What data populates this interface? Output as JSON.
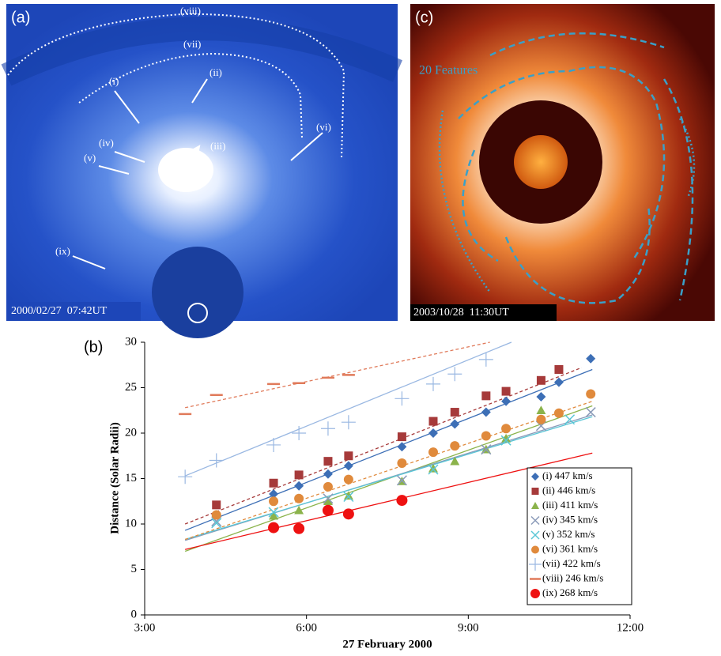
{
  "panels": {
    "a": {
      "label": "(a)",
      "timestamp": "2000/02/27  07:42UT",
      "annotations": [
        "(viii)",
        "(vii)",
        "(i)",
        "(ii)",
        "(iii)",
        "(iv)",
        "(v)",
        "(vi)",
        "(ix)"
      ]
    },
    "c": {
      "label": "(c)",
      "timestamp": "2003/10/28  11:30UT",
      "note": "20 Features"
    }
  },
  "chart_data": {
    "type": "scatter",
    "panel": "(b)",
    "xlabel": "27 February 2000",
    "ylabel": "Distance (Solar Radii)",
    "xlim": [
      3,
      12
    ],
    "xticks": [
      {
        "value": 3,
        "label": "3:00"
      },
      {
        "value": 6,
        "label": "6:00"
      },
      {
        "value": 9,
        "label": "9:00"
      },
      {
        "value": 12,
        "label": "12:00"
      }
    ],
    "ylim": [
      0,
      30
    ],
    "yticks": [
      0,
      5,
      10,
      15,
      20,
      25,
      30
    ],
    "legend": "lower right",
    "series": [
      {
        "name": "(i) 447 km/s",
        "color": "#3d6fb6",
        "marker": "diamond",
        "dashed": false,
        "x": [
          5.39,
          5.86,
          6.4,
          6.78,
          7.77,
          8.35,
          8.75,
          9.33,
          9.7,
          10.35,
          10.68,
          11.27
        ],
        "values": [
          13.3,
          14.2,
          15.5,
          16.4,
          18.5,
          20.0,
          21.0,
          22.3,
          23.5,
          24.0,
          25.6,
          28.2
        ],
        "trend": {
          "x": [
            3.75,
            11.3
          ],
          "y": [
            9.3,
            27.0
          ]
        }
      },
      {
        "name": "(ii) 446 km/s",
        "color": "#a63a3a",
        "marker": "square",
        "dashed": true,
        "x": [
          4.33,
          5.39,
          5.86,
          6.4,
          6.78,
          7.77,
          8.35,
          8.75,
          9.33,
          9.7,
          10.35,
          10.68
        ],
        "values": [
          12.1,
          14.5,
          15.4,
          16.9,
          17.5,
          19.6,
          21.3,
          22.3,
          24.1,
          24.6,
          25.8,
          27.0
        ],
        "trend": {
          "x": [
            3.75,
            11.1
          ],
          "y": [
            10.0,
            27.2
          ]
        }
      },
      {
        "name": "(iii) 411 km/s",
        "color": "#8bb34b",
        "marker": "triangle",
        "dashed": false,
        "x": [
          5.39,
          5.86,
          6.4,
          6.78,
          7.77,
          8.35,
          8.75,
          9.33,
          9.7,
          10.35
        ],
        "values": [
          10.9,
          11.5,
          12.5,
          13.1,
          14.7,
          16.1,
          16.9,
          18.2,
          19.4,
          22.5
        ],
        "trend": {
          "x": [
            3.75,
            11.3
          ],
          "y": [
            7.0,
            23.0
          ]
        }
      },
      {
        "name": "(iv) 345 km/s",
        "color": "#8a9ab8",
        "marker": "x",
        "dashed": false,
        "x": [
          4.33,
          6.4,
          7.77,
          9.33,
          10.35,
          11.27
        ],
        "values": [
          10.3,
          12.8,
          14.8,
          18.2,
          20.8,
          22.3
        ],
        "trend": {
          "x": [
            3.75,
            11.3
          ],
          "y": [
            8.2,
            22.0
          ]
        }
      },
      {
        "name": "(v) 352 km/s",
        "color": "#5ac6d6",
        "marker": "x",
        "dashed": false,
        "x": [
          4.33,
          5.39,
          6.78,
          8.35,
          9.7,
          10.88
        ],
        "values": [
          10.1,
          11.3,
          13.0,
          16.0,
          19.2,
          21.5
        ],
        "trend": {
          "x": [
            3.75,
            11.3
          ],
          "y": [
            8.3,
            21.8
          ]
        }
      },
      {
        "name": "(vi) 361 km/s",
        "color": "#e08a3c",
        "marker": "circle",
        "dashed": true,
        "x": [
          4.33,
          5.39,
          5.86,
          6.4,
          6.78,
          7.77,
          8.35,
          8.75,
          9.33,
          9.7,
          10.35,
          10.68,
          11.27
        ],
        "values": [
          11.0,
          12.5,
          12.8,
          14.1,
          14.9,
          16.7,
          17.9,
          18.6,
          19.7,
          20.5,
          21.5,
          22.2,
          24.3
        ],
        "trend": {
          "x": [
            3.75,
            11.3
          ],
          "y": [
            8.3,
            23.5
          ]
        }
      },
      {
        "name": "(vii) 422 km/s",
        "color": "#9ab8e2",
        "marker": "plus",
        "dashed": false,
        "x": [
          3.75,
          4.33,
          5.39,
          5.86,
          6.4,
          6.78,
          7.77,
          8.35,
          8.75,
          9.33
        ],
        "values": [
          15.2,
          17.0,
          18.7,
          20.0,
          20.5,
          21.2,
          23.8,
          25.4,
          26.5,
          28.1
        ],
        "trend": {
          "x": [
            3.75,
            9.8
          ],
          "y": [
            15.3,
            30.0
          ]
        }
      },
      {
        "name": "(viii) 246 km/s",
        "color": "#e07a5a",
        "marker": "dash",
        "dashed": true,
        "x": [
          3.75,
          4.33,
          5.39,
          5.86,
          6.4,
          6.78
        ],
        "values": [
          22.1,
          24.2,
          25.4,
          25.5,
          26.1,
          26.4
        ],
        "trend": {
          "x": [
            3.75,
            9.4
          ],
          "y": [
            22.8,
            30.0
          ]
        }
      },
      {
        "name": "(ix) 268 km/s",
        "color": "#ee1111",
        "marker": "circle",
        "dashed": false,
        "x": [
          5.39,
          5.86,
          6.4,
          6.78,
          7.77
        ],
        "values": [
          9.6,
          9.5,
          11.5,
          11.1,
          12.6
        ],
        "trend": {
          "x": [
            3.75,
            11.3
          ],
          "y": [
            7.2,
            17.8
          ]
        }
      }
    ]
  }
}
